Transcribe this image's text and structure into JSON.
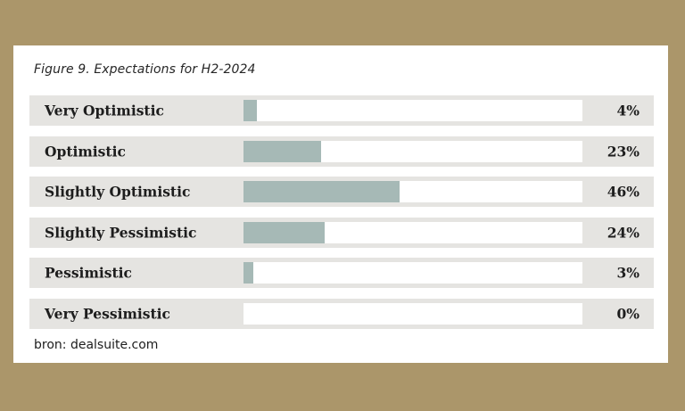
{
  "figure": {
    "title": "Figure 9. Expectations for H2-2024",
    "source": "bron: dealsuite.com"
  },
  "colors": {
    "page_background": "#ab966a",
    "card_background": "#ffffff",
    "row_background": "#e5e4e1",
    "track_background": "#ffffff",
    "bar_fill": "#a6b9b6",
    "text": "#1d1d1d"
  },
  "chart_data": {
    "type": "bar",
    "orientation": "horizontal",
    "title": "Figure 9. Expectations for H2-2024",
    "categories": [
      "Very Optimistic",
      "Optimistic",
      "Slightly Optimistic",
      "Slightly Pessimistic",
      "Pessimistic",
      "Very Pessimistic"
    ],
    "values": [
      4,
      23,
      46,
      24,
      3,
      0
    ],
    "value_labels": [
      "4%",
      "23%",
      "46%",
      "24%",
      "3%",
      "0%"
    ],
    "xlim": [
      0,
      100
    ],
    "grid": false,
    "legend": false,
    "source": "bron: dealsuite.com"
  }
}
